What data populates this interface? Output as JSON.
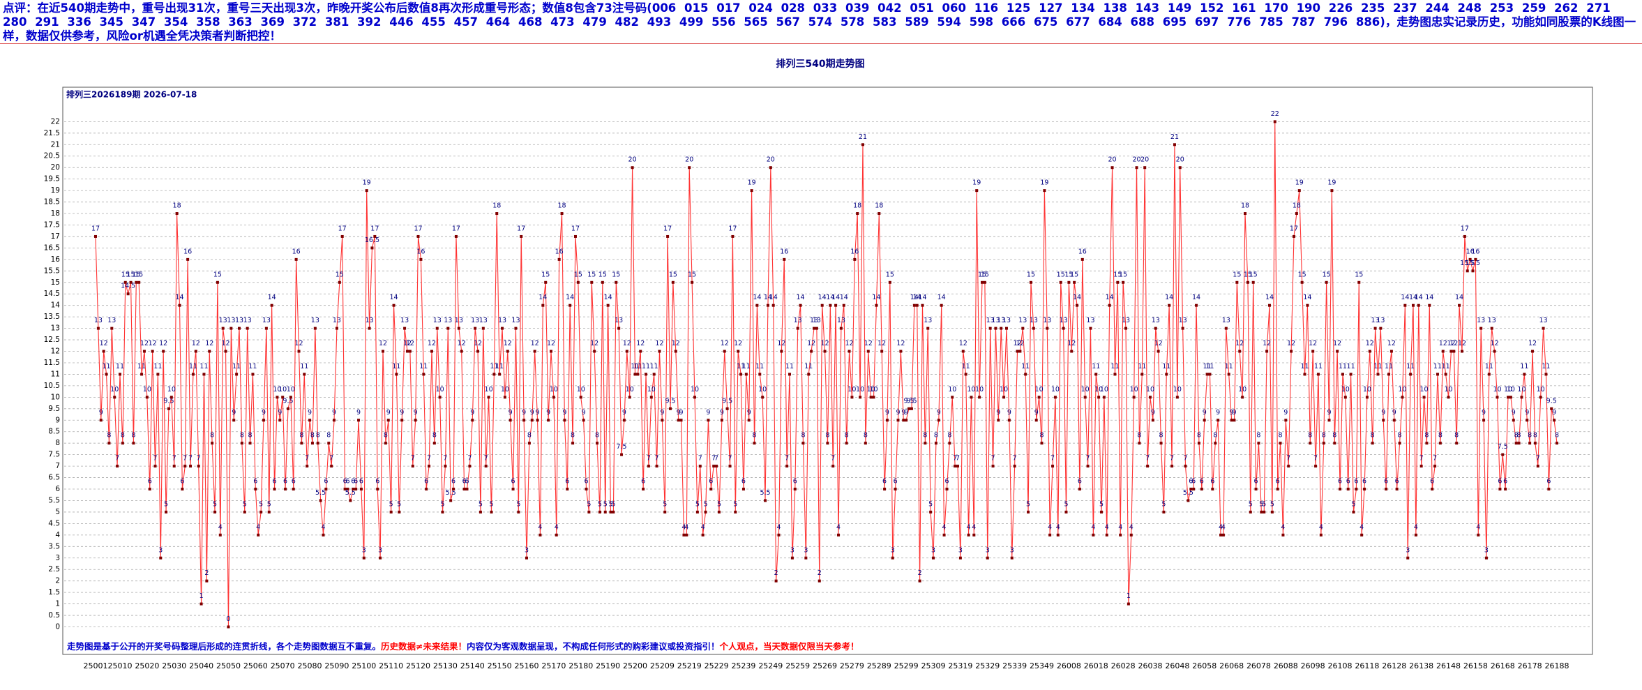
{
  "header": {
    "comment": "点评：在近540期走势中，重号出现31次，重号三天出现3次，昨晚开奖公布后数值8再次形成重号形态；数值8包含73注号码(006 015 017 024 028 033 039 042 051 060 116 125 127 134 138 143 149 152 161 170 190 226 235 237 244 248 253 259 262 271 280 291 336 345 347 354 358 363 369 372 381 392 446 455 457 464 468 473 479 482 493 499 556 565 567 574 578 583 589 594 598 666 675 677 684 688 695 697 776 785 787 796 886)，走势图忠实记录历史，功能如同股票的K线图一样，数据仅供参考，风险or机遇全凭决策者判断把控！"
  },
  "chart_data": {
    "type": "line",
    "title": "排列三540期走势图",
    "subtitle": "排列三2026189期 2026-07-18",
    "footer": [
      {
        "text": "走势图是基于公开的开奖号码整理后形成的连贯折线，各个走势图数据互不重复。",
        "color": "#0000cc"
      },
      {
        "text": "历史数据≠未来结果！",
        "color": "#ff0000"
      },
      {
        "text": "内容仅为客观数据呈现，不构成任何形式的购彩建议或投资指引！",
        "color": "#0000cc"
      },
      {
        "text": "个人观点，当天数据仅限当天参考！",
        "color": "#ff0000"
      }
    ],
    "color": "#ff3333",
    "marker_color": "#800000",
    "label_color": "#000080",
    "grid": true,
    "ylim": [
      -1.2,
      23.5
    ],
    "yticks": [
      0,
      0.5,
      1,
      1.5,
      2,
      2.5,
      3,
      3.5,
      4,
      4.5,
      5,
      5.5,
      6,
      6.5,
      7,
      7.5,
      8,
      8.5,
      9,
      9.5,
      10,
      10.5,
      11,
      11.5,
      12,
      12.5,
      13,
      13.5,
      14,
      14.5,
      15,
      15.5,
      16,
      16.5,
      17,
      17.5,
      18,
      18.5,
      19,
      19.5,
      20,
      20.5,
      21,
      21.5,
      22
    ],
    "categories": [
      "25001",
      null,
      null,
      null,
      null,
      null,
      null,
      null,
      null,
      "25010",
      null,
      null,
      null,
      null,
      null,
      null,
      null,
      null,
      null,
      "25020",
      null,
      null,
      null,
      null,
      null,
      null,
      null,
      null,
      null,
      "25030",
      null,
      null,
      null,
      null,
      null,
      null,
      null,
      null,
      null,
      "25040",
      null,
      null,
      null,
      null,
      null,
      null,
      null,
      null,
      null,
      "25050",
      null,
      null,
      null,
      null,
      null,
      null,
      null,
      null,
      null,
      "25060",
      null,
      null,
      null,
      null,
      null,
      null,
      null,
      null,
      null,
      "25070",
      null,
      null,
      null,
      null,
      null,
      null,
      null,
      null,
      null,
      "25080",
      null,
      null,
      null,
      null,
      null,
      null,
      null,
      null,
      null,
      "25090",
      null,
      null,
      null,
      null,
      null,
      null,
      null,
      null,
      null,
      "25100",
      null,
      null,
      null,
      null,
      null,
      null,
      null,
      null,
      null,
      "25110",
      null,
      null,
      null,
      null,
      null,
      null,
      null,
      null,
      null,
      "25120",
      null,
      null,
      null,
      null,
      null,
      null,
      null,
      null,
      null,
      "25130",
      null,
      null,
      null,
      null,
      null,
      null,
      null,
      null,
      null,
      "25140",
      null,
      null,
      null,
      null,
      null,
      null,
      null,
      null,
      null,
      "25150",
      null,
      null,
      null,
      null,
      null,
      null,
      null,
      null,
      null,
      "25160",
      null,
      null,
      null,
      null,
      null,
      null,
      null,
      null,
      null,
      "25170",
      null,
      null,
      null,
      null,
      null,
      null,
      null,
      null,
      null,
      "25180",
      null,
      null,
      null,
      null,
      null,
      null,
      null,
      null,
      null,
      "25190",
      null,
      null,
      null,
      null,
      null,
      null,
      null,
      null,
      null,
      "25200",
      null,
      null,
      null,
      null,
      null,
      null,
      null,
      null,
      null,
      "25209",
      null,
      null,
      null,
      null,
      null,
      null,
      null,
      null,
      null,
      "25219",
      null,
      null,
      null,
      null,
      null,
      null,
      null,
      null,
      null,
      "25229",
      null,
      null,
      null,
      null,
      null,
      null,
      null,
      null,
      null,
      "25239",
      null,
      null,
      null,
      null,
      null,
      null,
      null,
      null,
      null,
      "25249",
      null,
      null,
      null,
      null,
      null,
      null,
      null,
      null,
      null,
      "25259",
      null,
      null,
      null,
      null,
      null,
      null,
      null,
      null,
      null,
      "25269",
      null,
      null,
      null,
      null,
      null,
      null,
      null,
      null,
      null,
      "25279",
      null,
      null,
      null,
      null,
      null,
      null,
      null,
      null,
      null,
      "25289",
      null,
      null,
      null,
      null,
      null,
      null,
      null,
      null,
      null,
      "25299",
      null,
      null,
      null,
      null,
      null,
      null,
      null,
      null,
      null,
      "25309",
      null,
      null,
      null,
      null,
      null,
      null,
      null,
      null,
      null,
      "25319",
      null,
      null,
      null,
      null,
      null,
      null,
      null,
      null,
      null,
      "25329",
      null,
      null,
      null,
      null,
      null,
      null,
      null,
      null,
      null,
      "25339",
      null,
      null,
      null,
      null,
      null,
      null,
      null,
      null,
      null,
      "25349",
      null,
      null,
      null,
      null,
      null,
      null,
      null,
      null,
      null,
      "26008",
      null,
      null,
      null,
      null,
      null,
      null,
      null,
      null,
      null,
      "26018",
      null,
      null,
      null,
      null,
      null,
      null,
      null,
      null,
      null,
      "26028",
      null,
      null,
      null,
      null,
      null,
      null,
      null,
      null,
      null,
      "26038",
      null,
      null,
      null,
      null,
      null,
      null,
      null,
      null,
      null,
      "26048",
      null,
      null,
      null,
      null,
      null,
      null,
      null,
      null,
      null,
      "26058",
      null,
      null,
      null,
      null,
      null,
      null,
      null,
      null,
      null,
      "26068",
      null,
      null,
      null,
      null,
      null,
      null,
      null,
      null,
      null,
      "26078",
      null,
      null,
      null,
      null,
      null,
      null,
      null,
      null,
      null,
      "26088",
      null,
      null,
      null,
      null,
      null,
      null,
      null,
      null,
      null,
      "26098",
      null,
      null,
      null,
      null,
      null,
      null,
      null,
      null,
      null,
      "26108",
      null,
      null,
      null,
      null,
      null,
      null,
      null,
      null,
      null,
      "26118",
      null,
      null,
      null,
      null,
      null,
      null,
      null,
      null,
      null,
      "26128",
      null,
      null,
      null,
      null,
      null,
      null,
      null,
      null,
      null,
      "26138",
      null,
      null,
      null,
      null,
      null,
      null,
      null,
      null,
      null,
      "26148",
      null,
      null,
      null,
      null,
      null,
      null,
      null,
      null,
      null,
      "26158",
      null,
      null,
      null,
      null,
      null,
      null,
      null,
      null,
      null,
      "26168",
      null,
      null,
      null,
      null,
      null,
      null,
      null,
      null,
      null,
      "26178",
      null,
      null,
      null,
      null,
      null,
      null,
      null,
      null,
      null,
      "26188"
    ],
    "values": [
      17,
      13,
      9,
      12,
      11,
      8,
      13,
      10,
      7,
      11,
      8,
      15,
      14.5,
      15,
      8,
      15,
      15,
      11,
      12,
      10,
      6,
      12,
      7,
      11,
      3,
      12,
      5,
      9.5,
      10,
      7,
      18,
      14,
      6,
      7,
      16,
      7,
      11,
      12,
      7,
      1,
      11,
      2,
      12,
      8,
      5,
      15,
      4,
      13,
      12,
      0,
      13,
      9,
      11,
      13,
      8,
      5,
      13,
      8,
      11,
      6,
      4,
      5,
      9,
      13,
      5,
      14,
      6,
      10,
      9,
      10,
      6,
      9.5,
      10,
      6,
      16,
      12,
      8,
      11,
      7,
      9,
      8,
      13,
      8,
      5.5,
      4,
      6,
      8,
      7,
      9,
      13,
      15,
      17,
      6,
      6,
      5.5,
      6,
      6,
      9,
      6,
      3,
      19,
      13,
      16.5,
      17,
      6,
      3,
      12,
      8,
      9,
      5,
      14,
      11,
      5,
      9,
      13,
      12,
      12,
      7,
      9,
      17,
      16,
      11,
      6,
      7,
      12,
      8,
      13,
      10,
      5,
      7,
      13,
      5.5,
      6,
      17,
      13,
      12,
      6,
      6,
      7,
      9,
      13,
      12,
      5,
      13,
      7,
      10,
      5,
      11,
      18,
      11,
      13,
      10,
      12,
      9,
      6,
      13,
      5,
      17,
      9,
      3,
      8,
      9,
      12,
      9,
      4,
      14,
      15,
      9,
      12,
      10,
      4,
      16,
      18,
      9,
      6,
      14,
      8,
      17,
      15,
      10,
      9,
      6,
      5,
      15,
      12,
      8,
      5,
      15,
      5,
      14,
      5,
      5,
      15,
      13,
      7.5,
      9,
      12,
      10,
      20,
      11,
      11,
      12,
      6,
      11,
      7,
      10,
      11,
      7,
      12,
      9,
      5,
      17,
      9.5,
      15,
      12,
      9,
      9,
      4,
      4,
      20,
      15,
      10,
      5,
      7,
      4,
      5,
      9,
      6,
      7,
      7,
      5,
      9,
      12,
      9.5,
      7,
      17,
      5,
      12,
      11,
      6,
      11,
      9,
      19,
      8,
      14,
      11,
      10,
      5.5,
      14,
      20,
      14,
      2,
      4,
      12,
      16,
      7,
      11,
      3,
      6,
      13,
      14,
      8,
      3,
      11,
      12,
      13,
      13,
      2,
      14,
      12,
      8,
      14,
      7,
      14,
      4,
      13,
      14,
      8,
      12,
      10,
      16,
      18,
      10,
      21,
      8,
      12,
      10,
      10,
      14,
      18,
      12,
      6,
      9,
      15,
      3,
      6,
      9,
      12,
      9,
      9,
      9.5,
      9.5,
      14,
      14,
      2,
      14,
      8,
      13,
      5,
      3,
      8,
      9,
      14,
      4,
      6,
      8,
      10,
      7,
      7,
      3,
      12,
      11,
      4,
      10,
      4,
      19,
      10,
      15,
      15,
      3,
      13,
      7,
      13,
      9,
      13,
      10,
      13,
      9,
      3,
      7,
      12,
      12,
      13,
      11,
      5,
      15,
      13,
      9,
      10,
      8,
      19,
      13,
      4,
      7,
      10,
      4,
      15,
      13,
      5,
      15,
      12,
      15,
      14,
      6,
      16,
      10,
      7,
      13,
      4,
      11,
      10,
      5,
      10,
      4,
      14,
      20,
      11,
      15,
      4,
      15,
      13,
      1,
      4,
      10,
      20,
      8,
      11,
      20,
      7,
      10,
      9,
      13,
      12,
      8,
      5,
      11,
      14,
      7,
      21,
      10,
      20,
      13,
      7,
      5.5,
      6,
      6,
      14,
      8,
      6,
      9,
      11,
      11,
      6,
      8,
      9,
      4,
      4,
      13,
      11,
      9,
      9,
      15,
      12,
      10,
      18,
      15,
      5,
      15,
      6,
      8,
      5,
      5,
      12,
      14,
      5,
      22,
      6,
      8,
      4,
      9,
      7,
      12,
      17,
      18,
      19,
      15,
      11,
      14,
      8,
      12,
      7,
      11,
      4,
      8,
      15,
      9,
      19,
      8,
      12,
      6,
      11,
      10,
      6,
      11,
      5,
      6,
      15,
      4,
      6,
      10,
      12,
      8,
      13,
      11,
      13,
      9,
      6,
      11,
      12,
      9,
      6,
      8,
      10,
      14,
      3,
      11,
      14,
      4,
      14,
      7,
      10,
      8,
      14,
      6,
      7,
      11,
      8,
      12,
      11,
      10,
      12,
      12,
      8,
      14,
      12,
      17,
      15.5,
      16,
      15.5,
      16,
      4,
      13,
      9,
      3,
      11,
      13,
      12,
      10,
      6,
      7.5,
      6,
      10,
      10,
      9,
      8,
      8,
      10,
      11,
      9,
      8,
      12,
      8,
      7,
      10,
      13,
      11,
      6,
      9.5,
      9,
      8
    ]
  }
}
